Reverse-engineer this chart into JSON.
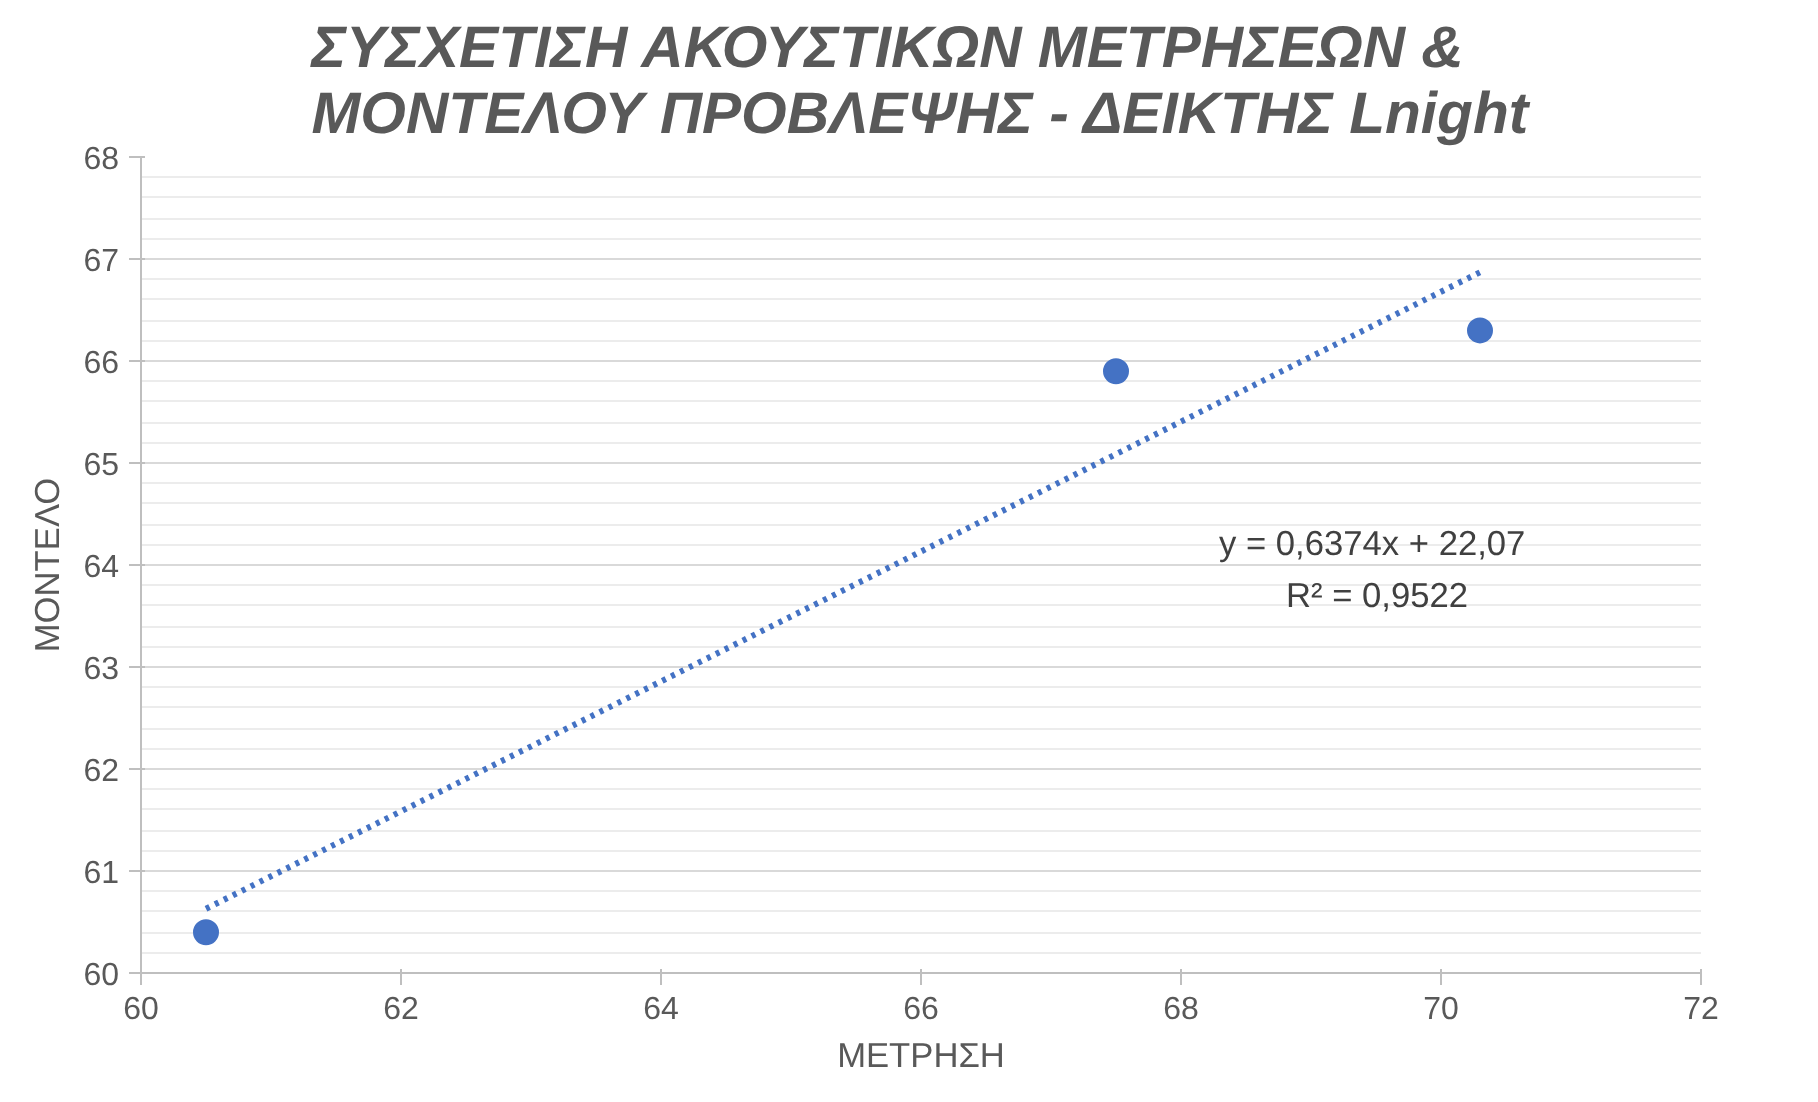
{
  "chart_data": {
    "type": "scatter",
    "title": "ΣΥΣΧΕΤΙΣΗ ΑΚΟΥΣΤΙΚΩΝ ΜΕΤΡΗΣΕΩΝ &\nΜΟΝΤΕΛΟΥ ΠΡΟΒΛΕΨΗΣ - ΔΕΙΚΤΗΣ Lnight",
    "xlabel": "ΜΕΤΡΗΣΗ",
    "ylabel": "ΜΟΝΤΕΛΟ",
    "series": [
      {
        "color": "#4472c4",
        "marker": "circle",
        "x": [
          60.5,
          67.5,
          70.3
        ],
        "values": [
          60.4,
          65.9,
          66.3
        ]
      },
      {
        "type": "line",
        "color": "#4472c4",
        "line_style": "dotted",
        "marker": "none",
        "x": [
          60.5,
          70.3
        ],
        "values": [
          60.63,
          66.87
        ]
      }
    ],
    "annotations": [
      "y = 0,6374x  + 22,07",
      "R² = 0,9522"
    ],
    "xlim": [
      60,
      72
    ],
    "xticks": [
      60,
      62,
      64,
      66,
      68,
      70,
      72
    ],
    "ylim": [
      60,
      68
    ],
    "yticks": [
      60,
      61,
      62,
      63,
      64,
      65,
      66,
      67,
      68
    ],
    "grid": "y"
  }
}
